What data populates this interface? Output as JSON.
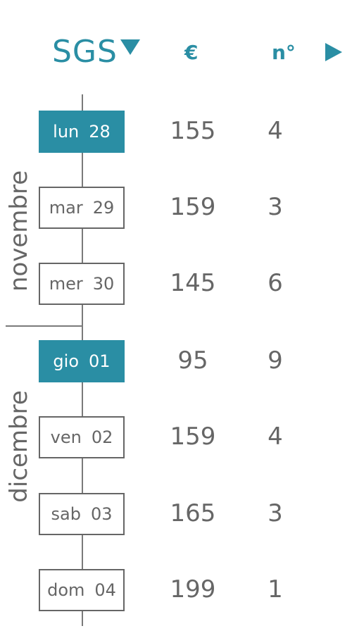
{
  "header": {
    "airport_code": "SGS",
    "price_label": "€",
    "count_label": "n°",
    "airport_selector_icon": "caret-down-icon",
    "next_icon": "play-right-icon"
  },
  "months": {
    "first": "novembre",
    "second": "dicembre"
  },
  "rows": [
    {
      "weekday": "lun",
      "day": "28",
      "price": "155",
      "count": "4",
      "selected": true
    },
    {
      "weekday": "mar",
      "day": "29",
      "price": "159",
      "count": "3",
      "selected": false
    },
    {
      "weekday": "mer",
      "day": "30",
      "price": "145",
      "count": "6",
      "selected": false
    },
    {
      "weekday": "gio",
      "day": "01",
      "price": "95",
      "count": "9",
      "selected": true
    },
    {
      "weekday": "ven",
      "day": "02",
      "price": "159",
      "count": "4",
      "selected": false
    },
    {
      "weekday": "sab",
      "day": "03",
      "price": "165",
      "count": "3",
      "selected": false
    },
    {
      "weekday": "dom",
      "day": "04",
      "price": "199",
      "count": "1",
      "selected": false
    }
  ],
  "colors": {
    "accent": "#2a8ea4",
    "text": "#666666",
    "line": "#7a7a7a",
    "background": "#ffffff"
  }
}
